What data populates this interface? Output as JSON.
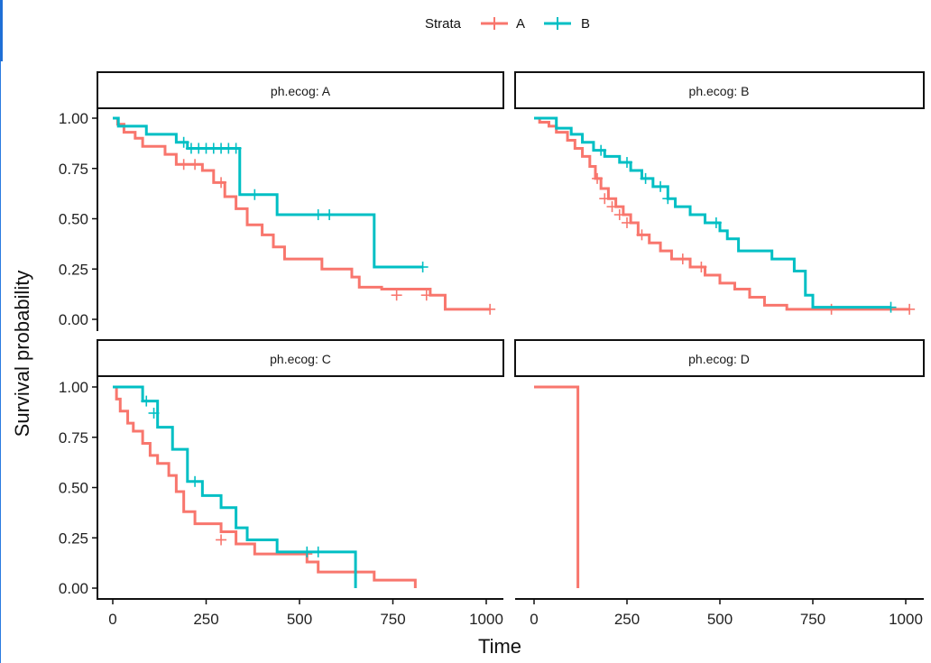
{
  "legend": {
    "title": "Strata",
    "entries": [
      "A",
      "B"
    ]
  },
  "colors": {
    "A": "#F8766D",
    "B": "#00BFC4"
  },
  "chart_data": {
    "type": "line",
    "subtype": "kaplan-meier-faceted",
    "xlabel": "Time",
    "ylabel": "Survival probability",
    "xlim": [
      0,
      1030
    ],
    "ylim": [
      0,
      1
    ],
    "x_ticks": [
      "0",
      "250",
      "500",
      "750",
      "1000"
    ],
    "y_ticks": [
      "0.00",
      "0.25",
      "0.50",
      "0.75",
      "1.00"
    ],
    "legend_position": "top",
    "grid": false,
    "panels": [
      {
        "strip": "ph.ecog: A",
        "series": [
          {
            "name": "A",
            "steps": [
              [
                0,
                1.0
              ],
              [
                13,
                0.97
              ],
              [
                30,
                0.93
              ],
              [
                60,
                0.9
              ],
              [
                80,
                0.86
              ],
              [
                140,
                0.82
              ],
              [
                170,
                0.77
              ],
              [
                240,
                0.74
              ],
              [
                270,
                0.68
              ],
              [
                300,
                0.61
              ],
              [
                330,
                0.55
              ],
              [
                360,
                0.47
              ],
              [
                400,
                0.42
              ],
              [
                430,
                0.36
              ],
              [
                460,
                0.3
              ],
              [
                560,
                0.25
              ],
              [
                640,
                0.21
              ],
              [
                660,
                0.16
              ],
              [
                720,
                0.15
              ],
              [
                850,
                0.12
              ],
              [
                890,
                0.05
              ],
              [
                1010,
                0.05
              ]
            ],
            "censor": [
              [
                190,
                0.77
              ],
              [
                220,
                0.77
              ],
              [
                290,
                0.68
              ],
              [
                760,
                0.12
              ],
              [
                840,
                0.12
              ],
              [
                1010,
                0.05
              ]
            ]
          },
          {
            "name": "B",
            "steps": [
              [
                0,
                1.0
              ],
              [
                15,
                0.96
              ],
              [
                90,
                0.92
              ],
              [
                170,
                0.88
              ],
              [
                200,
                0.85
              ],
              [
                340,
                0.62
              ],
              [
                440,
                0.52
              ],
              [
                700,
                0.26
              ],
              [
                830,
                0.26
              ]
            ],
            "censor": [
              [
                190,
                0.88
              ],
              [
                210,
                0.85
              ],
              [
                230,
                0.85
              ],
              [
                250,
                0.85
              ],
              [
                270,
                0.85
              ],
              [
                290,
                0.85
              ],
              [
                310,
                0.85
              ],
              [
                330,
                0.85
              ],
              [
                380,
                0.62
              ],
              [
                550,
                0.52
              ],
              [
                580,
                0.52
              ],
              [
                830,
                0.26
              ]
            ]
          }
        ]
      },
      {
        "strip": "ph.ecog: B",
        "series": [
          {
            "name": "A",
            "steps": [
              [
                0,
                1.0
              ],
              [
                15,
                0.98
              ],
              [
                40,
                0.96
              ],
              [
                60,
                0.93
              ],
              [
                90,
                0.89
              ],
              [
                110,
                0.85
              ],
              [
                130,
                0.81
              ],
              [
                150,
                0.76
              ],
              [
                165,
                0.7
              ],
              [
                180,
                0.65
              ],
              [
                200,
                0.6
              ],
              [
                220,
                0.56
              ],
              [
                240,
                0.52
              ],
              [
                260,
                0.48
              ],
              [
                280,
                0.42
              ],
              [
                310,
                0.38
              ],
              [
                340,
                0.34
              ],
              [
                370,
                0.3
              ],
              [
                420,
                0.26
              ],
              [
                460,
                0.22
              ],
              [
                500,
                0.18
              ],
              [
                540,
                0.15
              ],
              [
                580,
                0.11
              ],
              [
                620,
                0.07
              ],
              [
                680,
                0.05
              ],
              [
                1010,
                0.05
              ]
            ],
            "censor": [
              [
                170,
                0.7
              ],
              [
                190,
                0.6
              ],
              [
                210,
                0.56
              ],
              [
                230,
                0.52
              ],
              [
                250,
                0.48
              ],
              [
                290,
                0.42
              ],
              [
                400,
                0.3
              ],
              [
                450,
                0.26
              ],
              [
                800,
                0.05
              ],
              [
                1010,
                0.05
              ]
            ]
          },
          {
            "name": "B",
            "steps": [
              [
                0,
                1.0
              ],
              [
                60,
                0.95
              ],
              [
                100,
                0.92
              ],
              [
                130,
                0.88
              ],
              [
                160,
                0.84
              ],
              [
                190,
                0.81
              ],
              [
                230,
                0.78
              ],
              [
                260,
                0.74
              ],
              [
                290,
                0.7
              ],
              [
                320,
                0.66
              ],
              [
                360,
                0.6
              ],
              [
                380,
                0.56
              ],
              [
                420,
                0.52
              ],
              [
                460,
                0.48
              ],
              [
                500,
                0.44
              ],
              [
                520,
                0.4
              ],
              [
                550,
                0.34
              ],
              [
                640,
                0.3
              ],
              [
                700,
                0.24
              ],
              [
                730,
                0.12
              ],
              [
                750,
                0.06
              ],
              [
                960,
                0.06
              ]
            ],
            "censor": [
              [
                180,
                0.84
              ],
              [
                250,
                0.78
              ],
              [
                300,
                0.7
              ],
              [
                340,
                0.66
              ],
              [
                360,
                0.6
              ],
              [
                490,
                0.48
              ],
              [
                960,
                0.06
              ]
            ]
          }
        ]
      },
      {
        "strip": "ph.ecog: C",
        "series": [
          {
            "name": "A",
            "steps": [
              [
                0,
                1.0
              ],
              [
                10,
                0.94
              ],
              [
                20,
                0.88
              ],
              [
                40,
                0.82
              ],
              [
                55,
                0.78
              ],
              [
                80,
                0.72
              ],
              [
                100,
                0.66
              ],
              [
                120,
                0.62
              ],
              [
                150,
                0.56
              ],
              [
                170,
                0.48
              ],
              [
                190,
                0.38
              ],
              [
                220,
                0.32
              ],
              [
                290,
                0.28
              ],
              [
                330,
                0.22
              ],
              [
                380,
                0.17
              ],
              [
                520,
                0.13
              ],
              [
                550,
                0.08
              ],
              [
                700,
                0.04
              ],
              [
                810,
                0.0
              ]
            ],
            "censor": [
              [
                290,
                0.24
              ],
              [
                520,
                0.17
              ]
            ]
          },
          {
            "name": "B",
            "steps": [
              [
                0,
                1.0
              ],
              [
                80,
                0.93
              ],
              [
                120,
                0.8
              ],
              [
                160,
                0.69
              ],
              [
                200,
                0.53
              ],
              [
                240,
                0.46
              ],
              [
                290,
                0.4
              ],
              [
                330,
                0.3
              ],
              [
                360,
                0.24
              ],
              [
                440,
                0.18
              ],
              [
                650,
                0.0
              ]
            ],
            "censor": [
              [
                90,
                0.93
              ],
              [
                110,
                0.87
              ],
              [
                220,
                0.53
              ],
              [
                520,
                0.18
              ],
              [
                550,
                0.18
              ]
            ]
          }
        ]
      },
      {
        "strip": "ph.ecog: D",
        "series": [
          {
            "name": "A",
            "steps": [
              [
                0,
                1.0
              ],
              [
                118,
                0.0
              ]
            ],
            "censor": []
          }
        ]
      }
    ]
  }
}
